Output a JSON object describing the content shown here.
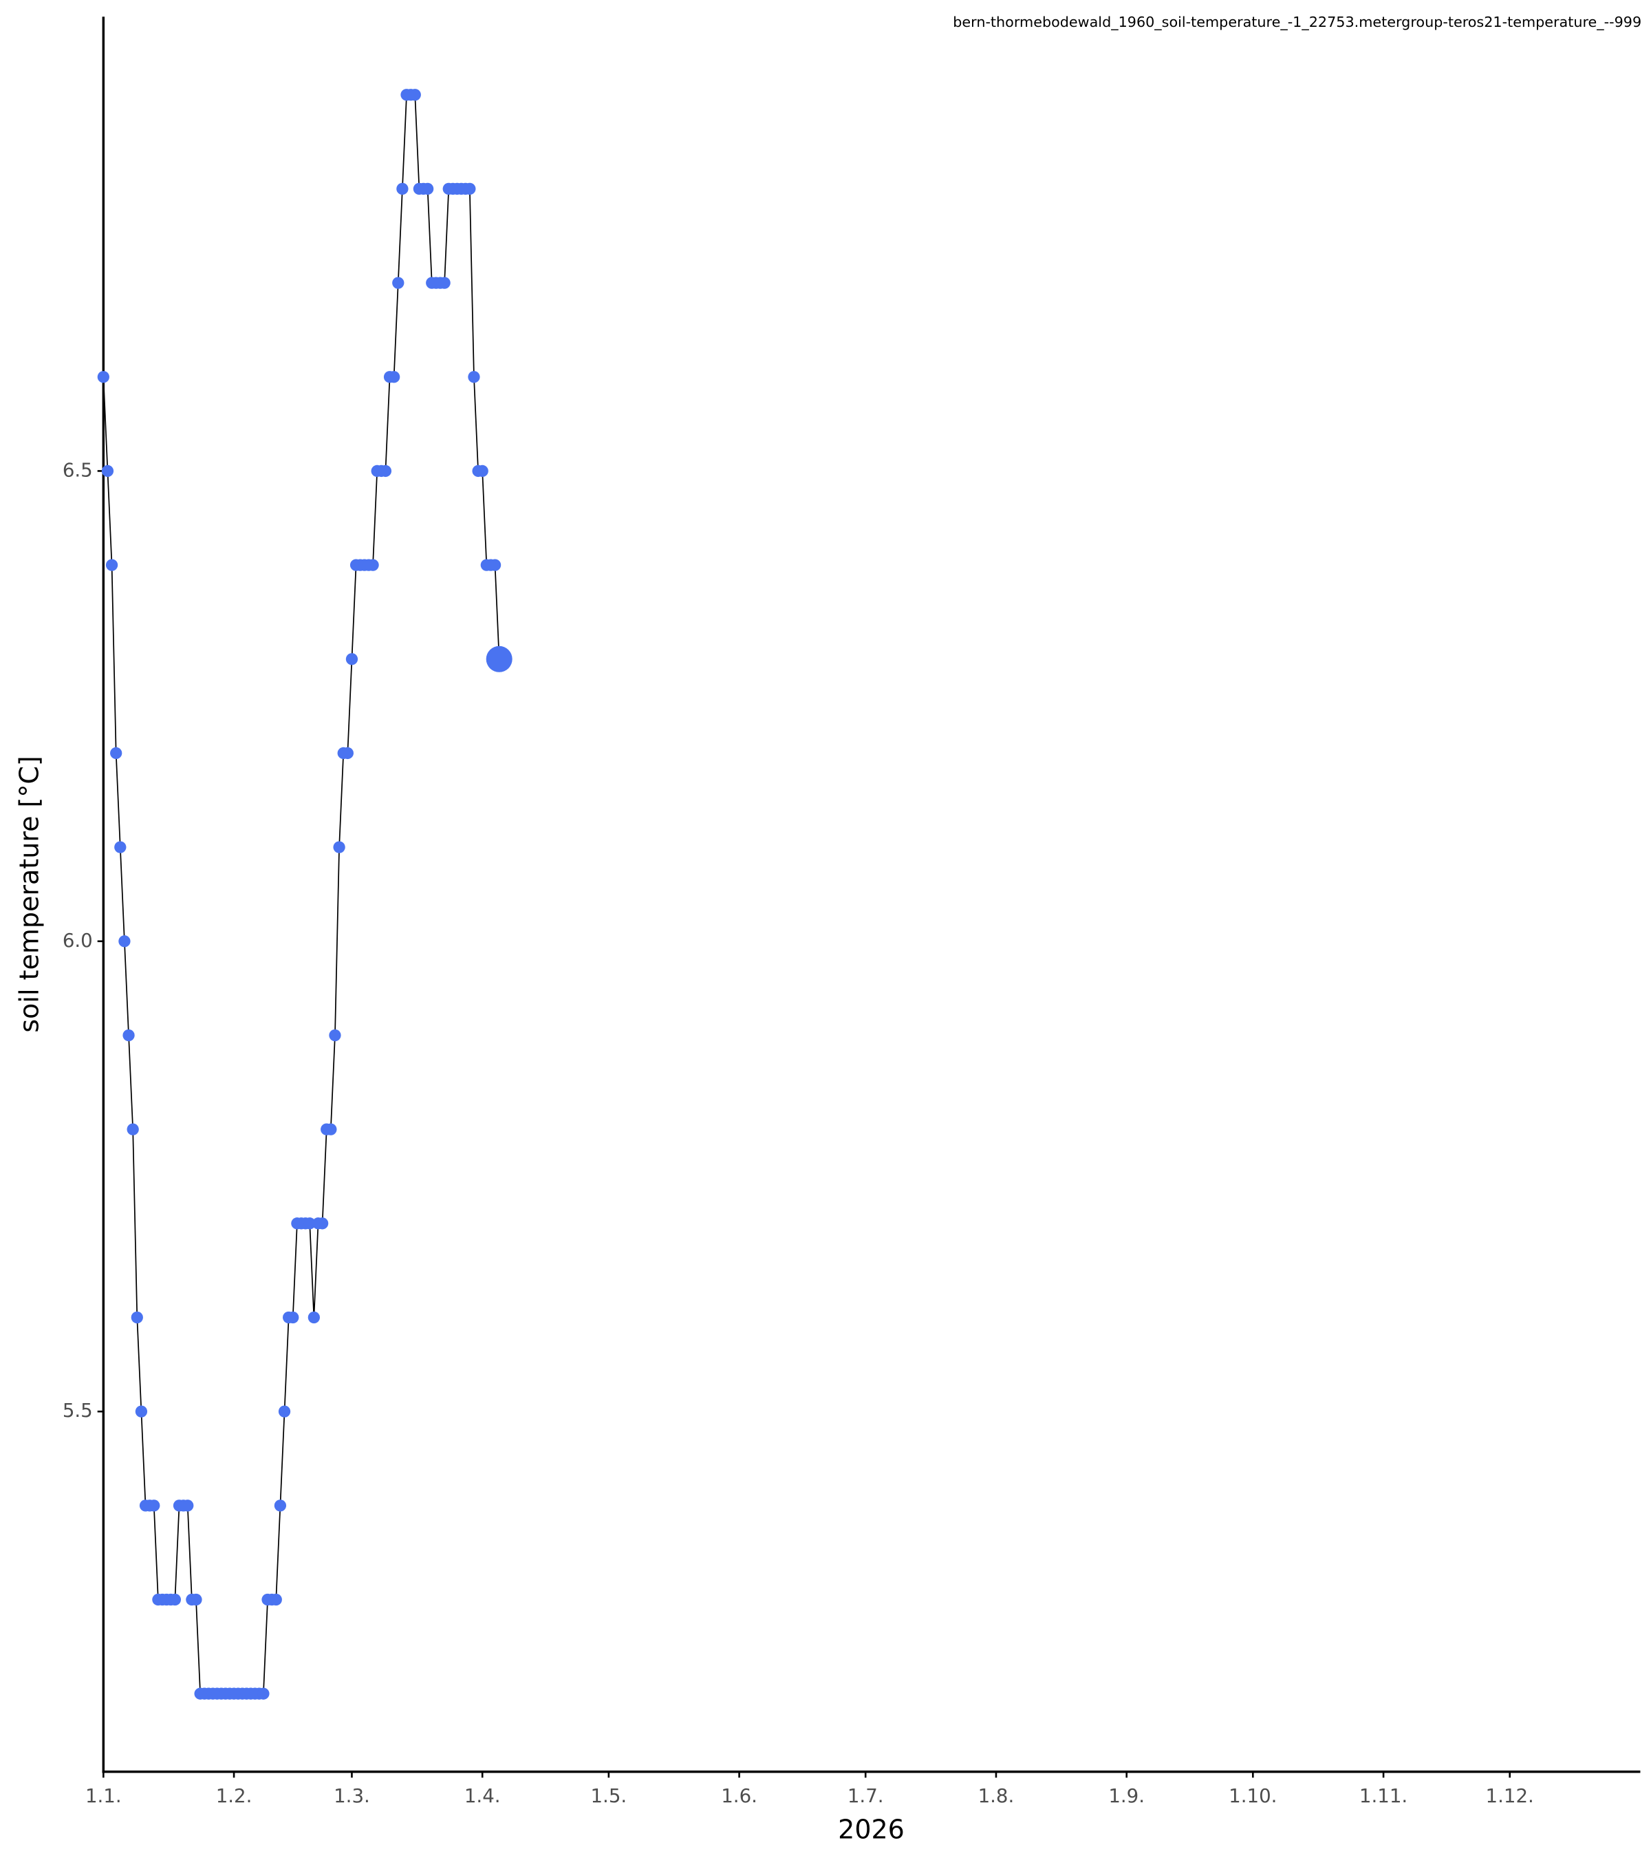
{
  "chart_data": {
    "type": "line",
    "title": "bern-thormebodewald_1960_soil-temperature_-1_22753.metergroup-teros21-temperature_--999",
    "x_label": "2026",
    "y_label": "soil temperature [°C]",
    "color": "#4a73f0",
    "line_color": "#000000",
    "markers": true,
    "grid": false,
    "x": [
      "2026-01-01",
      "2026-01-02",
      "2026-01-03",
      "2026-01-04",
      "2026-01-05",
      "2026-01-06",
      "2026-01-07",
      "2026-01-08",
      "2026-01-09",
      "2026-01-10",
      "2026-01-11",
      "2026-01-12",
      "2026-01-13",
      "2026-01-14",
      "2026-01-15",
      "2026-01-16",
      "2026-01-17",
      "2026-01-18",
      "2026-01-19",
      "2026-01-20",
      "2026-01-21",
      "2026-01-22",
      "2026-01-23",
      "2026-01-24",
      "2026-01-25",
      "2026-01-26",
      "2026-01-27",
      "2026-01-28",
      "2026-01-29",
      "2026-01-30",
      "2026-01-31",
      "2026-02-01",
      "2026-02-02",
      "2026-02-03",
      "2026-02-04",
      "2026-02-05",
      "2026-02-06",
      "2026-02-07",
      "2026-02-08",
      "2026-02-09",
      "2026-02-10",
      "2026-02-11",
      "2026-02-12",
      "2026-02-13",
      "2026-02-14",
      "2026-02-15",
      "2026-02-16",
      "2026-02-17",
      "2026-02-18",
      "2026-02-19",
      "2026-02-20",
      "2026-02-21",
      "2026-02-22",
      "2026-02-23",
      "2026-02-24",
      "2026-02-25",
      "2026-02-26",
      "2026-02-27",
      "2026-02-28",
      "2026-03-01",
      "2026-03-02",
      "2026-03-03",
      "2026-03-04",
      "2026-03-05",
      "2026-03-06",
      "2026-03-07",
      "2026-03-08",
      "2026-03-09",
      "2026-03-10",
      "2026-03-11",
      "2026-03-12",
      "2026-03-13",
      "2026-03-14",
      "2026-03-15",
      "2026-03-16",
      "2026-03-17",
      "2026-03-18",
      "2026-03-19",
      "2026-03-20",
      "2026-03-21",
      "2026-03-22",
      "2026-03-23",
      "2026-03-24",
      "2026-03-25",
      "2026-03-26",
      "2026-03-27",
      "2026-03-28",
      "2026-03-29",
      "2026-03-30",
      "2026-03-31",
      "2026-04-01",
      "2026-04-02",
      "2026-04-03",
      "2026-04-04",
      "2026-04-05"
    ],
    "values": [
      6.6,
      6.5,
      6.4,
      6.2,
      6.1,
      6.0,
      5.9,
      5.8,
      5.6,
      5.5,
      5.4,
      5.4,
      5.4,
      5.3,
      5.3,
      5.3,
      5.3,
      5.3,
      5.4,
      5.4,
      5.4,
      5.3,
      5.3,
      5.2,
      5.2,
      5.2,
      5.2,
      5.2,
      5.2,
      5.2,
      5.2,
      5.2,
      5.2,
      5.2,
      5.2,
      5.2,
      5.2,
      5.2,
      5.2,
      5.3,
      5.3,
      5.3,
      5.4,
      5.5,
      5.6,
      5.6,
      5.7,
      5.7,
      5.7,
      5.7,
      5.6,
      5.7,
      5.7,
      5.8,
      5.8,
      5.9,
      6.1,
      6.2,
      6.2,
      6.3,
      6.4,
      6.4,
      6.4,
      6.4,
      6.4,
      6.5,
      6.5,
      6.5,
      6.6,
      6.6,
      6.7,
      6.8,
      6.9,
      6.9,
      6.9,
      6.8,
      6.8,
      6.8,
      6.7,
      6.7,
      6.7,
      6.7,
      6.8,
      6.8,
      6.8,
      6.8,
      6.8,
      6.8,
      6.6,
      6.5,
      6.5,
      6.4,
      6.4,
      6.4,
      6.3
    ],
    "xlim": [
      "2026-01-01",
      "2027-01-01"
    ],
    "xticks": [
      {
        "value": "2026-01-01",
        "label": "1.1."
      },
      {
        "value": "2026-02-01",
        "label": "1.2."
      },
      {
        "value": "2026-03-01",
        "label": "1.3."
      },
      {
        "value": "2026-04-01",
        "label": "1.4."
      },
      {
        "value": "2026-05-01",
        "label": "1.5."
      },
      {
        "value": "2026-06-01",
        "label": "1.6."
      },
      {
        "value": "2026-07-01",
        "label": "1.7."
      },
      {
        "value": "2026-08-01",
        "label": "1.8."
      },
      {
        "value": "2026-09-01",
        "label": "1.9."
      },
      {
        "value": "2026-10-01",
        "label": "1.10."
      },
      {
        "value": "2026-11-01",
        "label": "1.11."
      },
      {
        "value": "2026-12-01",
        "label": "1.12."
      }
    ],
    "ylim": [
      5.117,
      6.983
    ],
    "yticks": [
      5.5,
      {
        "value": 6,
        "label": "6.0"
      },
      6.5
    ]
  }
}
